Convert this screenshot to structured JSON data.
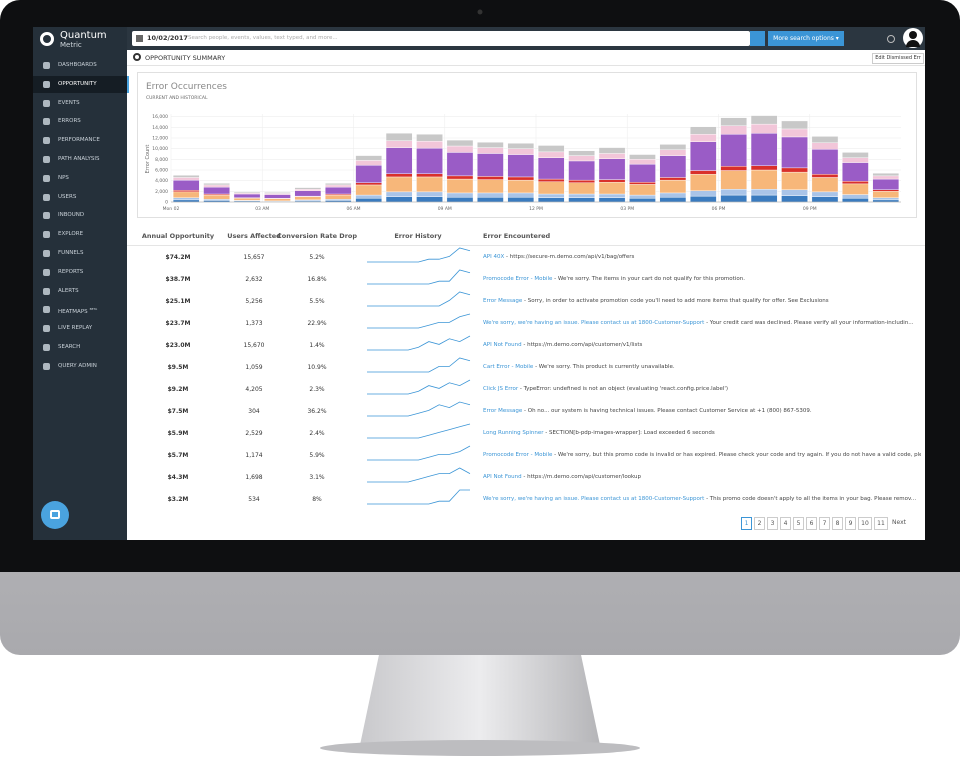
{
  "logo": {
    "name": "Quantum",
    "sub": "Metric"
  },
  "nav": {
    "items": [
      "DASHBOARDS",
      "OPPORTUNITY",
      "EVENTS",
      "ERRORS",
      "PERFORMANCE",
      "PATH ANALYSIS",
      "NPS",
      "USERS",
      "INBOUND",
      "EXPLORE",
      "FUNNELS",
      "REPORTS",
      "ALERTS",
      "HEATMAPS",
      "LIVE REPLAY",
      "SEARCH",
      "QUERY ADMIN"
    ],
    "badge": "BETA",
    "active": 1
  },
  "topbar": {
    "date": "10/02/2017",
    "search_placeholder": "Search people, events, values, text typed, and more...",
    "more": "More search options ▾"
  },
  "header": {
    "title": "OPPORTUNITY SUMMARY",
    "button": "Edit Dismissed Err"
  },
  "chart_data": {
    "type": "stacked-bar",
    "title": "Error Occurrences",
    "subtitle": "CURRENT AND HISTORICAL",
    "y_label": "Error Count",
    "categories": [
      "Mon 02",
      null,
      null,
      "03 AM",
      null,
      null,
      "06 AM",
      null,
      null,
      "09 AM",
      null,
      null,
      "12 PM",
      null,
      null,
      "03 PM",
      null,
      null,
      "06 PM",
      null,
      null,
      "09 PM",
      null,
      null
    ],
    "ylim": [
      0,
      16500
    ],
    "yticks": [
      0,
      {
        "value": 2000,
        "label": "2,000"
      },
      {
        "value": 4000,
        "label": "4,000"
      },
      {
        "value": 6000,
        "label": "6,000"
      },
      {
        "value": 8000,
        "label": "8,000"
      },
      {
        "value": 10000,
        "label": "10,000"
      },
      {
        "value": 12000,
        "label": "12,000"
      },
      {
        "value": 14000,
        "label": "14,000"
      },
      {
        "value": 16000,
        "label": "16,000"
      }
    ],
    "grid": true,
    "series": [
      {
        "color": "#3a7bbf",
        "values": [
          400,
          300,
          200,
          100,
          200,
          300,
          700,
          1000,
          1000,
          900,
          900,
          900,
          800,
          800,
          800,
          700,
          900,
          1100,
          1300,
          1300,
          1200,
          1000,
          700,
          400
        ]
      },
      {
        "color": "#a9c4e8",
        "values": [
          400,
          200,
          100,
          100,
          200,
          200,
          600,
          900,
          900,
          800,
          800,
          800,
          700,
          700,
          700,
          600,
          800,
          1000,
          1100,
          1100,
          1100,
          900,
          700,
          400
        ]
      },
      {
        "color": "#f7b77a",
        "values": [
          1100,
          800,
          400,
          400,
          600,
          800,
          1900,
          2800,
          2800,
          2600,
          2500,
          2400,
          2300,
          2100,
          2200,
          2000,
          2400,
          3100,
          3500,
          3600,
          3300,
          2700,
          2000,
          1200
        ]
      },
      {
        "color": "#d9302b",
        "values": [
          300,
          200,
          100,
          100,
          100,
          200,
          400,
          600,
          600,
          600,
          600,
          600,
          500,
          500,
          500,
          400,
          500,
          700,
          800,
          800,
          800,
          600,
          500,
          300
        ]
      },
      {
        "color": "#9a5cc6",
        "values": [
          1900,
          1300,
          700,
          700,
          1000,
          1300,
          3300,
          4900,
          4800,
          4400,
          4300,
          4200,
          4000,
          3600,
          3900,
          3400,
          4100,
          5400,
          6000,
          6100,
          5800,
          4700,
          3500,
          2000
        ]
      },
      {
        "color": "#f2c6d9",
        "values": [
          500,
          400,
          200,
          200,
          300,
          400,
          900,
          1300,
          1300,
          1200,
          1100,
          1100,
          1100,
          1000,
          1000,
          900,
          1100,
          1400,
          1600,
          1700,
          1500,
          1200,
          900,
          600
        ]
      },
      {
        "color": "#c8c8c8",
        "values": [
          400,
          300,
          200,
          200,
          300,
          300,
          900,
          1400,
          1300,
          1100,
          1000,
          1000,
          1200,
          900,
          1100,
          900,
          1000,
          1400,
          1500,
          1600,
          1500,
          1200,
          1000,
          500
        ]
      }
    ]
  },
  "table": {
    "columns": [
      "Annual Opportunity",
      "Users Affected",
      "Conversion Rate Drop",
      "Error History",
      "Error Encountered"
    ],
    "rows": [
      {
        "annual": "$74.2M",
        "users": "15,657",
        "drop": "5.2%",
        "history": [
          1,
          1,
          1,
          1,
          1,
          1,
          2,
          2,
          3,
          6,
          5
        ],
        "error": "API 40X",
        "message": "- https://secure-m.demo.com/api/v1/bag/offers"
      },
      {
        "annual": "$38.7M",
        "users": "2,632",
        "drop": "16.8%",
        "history": [
          1,
          1,
          1,
          1,
          1,
          1,
          1,
          2,
          2,
          6,
          5
        ],
        "error": "Promocode Error - Mobile",
        "message": "- We're sorry. The items in your cart do not qualify for this promotion."
      },
      {
        "annual": "$25.1M",
        "users": "5,256",
        "drop": "5.5%",
        "history": [
          1,
          1,
          1,
          1,
          1,
          1,
          1,
          1,
          3,
          6,
          5
        ],
        "error": "Error Message",
        "message": "- Sorry, in order to activate promotion code you'll need to add more items that qualify for offer. See Exclusions"
      },
      {
        "annual": "$23.7M",
        "users": "1,373",
        "drop": "22.9%",
        "history": [
          1,
          1,
          1,
          1,
          1,
          1,
          2,
          3,
          3,
          5,
          6
        ],
        "error": "We're sorry, we're having an issue. Please contact us at 1800-Customer-Support",
        "message": "- Your credit card was declined. Please verify all your information-includin..."
      },
      {
        "annual": "$23.0M",
        "users": "15,670",
        "drop": "1.4%",
        "history": [
          1,
          1,
          1,
          1,
          1,
          2,
          4,
          3,
          5,
          4,
          6
        ],
        "error": "API Not Found",
        "message": "- https://m.demo.com/api/customer/v1/lists"
      },
      {
        "annual": "$9.5M",
        "users": "1,059",
        "drop": "10.9%",
        "history": [
          1,
          1,
          1,
          1,
          1,
          1,
          1,
          3,
          3,
          6,
          5
        ],
        "error": "Cart Error - Mobile",
        "message": "- We're sorry. This product is currently unavailable."
      },
      {
        "annual": "$9.2M",
        "users": "4,205",
        "drop": "2.3%",
        "history": [
          1,
          1,
          1,
          1,
          1,
          2,
          4,
          3,
          5,
          4,
          6
        ],
        "error": "Click JS Error",
        "message": "- TypeError: undefined is not an object (evaluating 'react.config.price.label')"
      },
      {
        "annual": "$7.5M",
        "users": "304",
        "drop": "36.2%",
        "history": [
          1,
          1,
          1,
          1,
          1,
          2,
          3,
          5,
          4,
          6,
          5
        ],
        "error": "Error Message",
        "message": "- Oh no... our system is having technical issues. Please contact Customer Service at +1 (800) 867-5309."
      },
      {
        "annual": "$5.9M",
        "users": "2,529",
        "drop": "2.4%",
        "history": [
          1,
          1,
          1,
          1,
          1,
          1,
          2,
          3,
          4,
          5,
          6
        ],
        "error": "Long Running Spinner",
        "message": "- SECTION[b-pdp-images-wrapper]: Load exceeded 6 seconds"
      },
      {
        "annual": "$5.7M",
        "users": "1,174",
        "drop": "5.9%",
        "history": [
          1,
          1,
          1,
          1,
          1,
          1,
          2,
          3,
          3,
          4,
          6
        ],
        "error": "Promocode Error - Mobile",
        "message": "- We're sorry, but this promo code is invalid or has expired. Please check your code and try again. If you do not have a valid code, plea..."
      },
      {
        "annual": "$4.3M",
        "users": "1,698",
        "drop": "3.1%",
        "history": [
          1,
          1,
          1,
          1,
          1,
          2,
          3,
          4,
          4,
          6,
          4
        ],
        "error": "API Not Found",
        "message": "- https://m.demo.com/api/customer/lookup"
      },
      {
        "annual": "$3.2M",
        "users": "534",
        "drop": "8%",
        "history": [
          1,
          1,
          1,
          1,
          1,
          1,
          1,
          2,
          2,
          6,
          6
        ],
        "error": "We're sorry, we're having an issue. Please contact us at 1800-Customer-Support",
        "message": "- This promo code doesn't apply to all the items in your bag. Please remov..."
      }
    ]
  },
  "pagination": {
    "pages": [
      1,
      2,
      3,
      4,
      5,
      6,
      7,
      8,
      9,
      10,
      11
    ],
    "next": "Next",
    "current": 0
  }
}
